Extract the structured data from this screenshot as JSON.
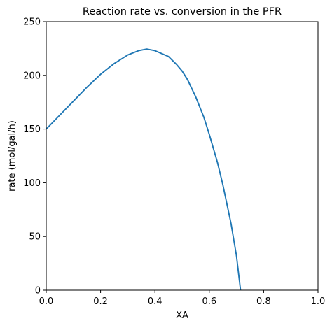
{
  "chart_data": {
    "type": "line",
    "title": "Reaction rate vs. conversion in the PFR",
    "xlabel": "XA",
    "ylabel": "rate (mol/gal/h)",
    "xlim": [
      0,
      1
    ],
    "ylim": [
      0,
      250
    ],
    "grid": false,
    "x_ticks": [
      0.0,
      0.2,
      0.4,
      0.6,
      0.8,
      1.0
    ],
    "x_tick_labels": [
      "0.0",
      "0.2",
      "0.4",
      "0.6",
      "0.8",
      "1.0"
    ],
    "y_ticks": [
      0,
      50,
      100,
      150,
      200,
      250
    ],
    "y_tick_labels": [
      "0",
      "50",
      "100",
      "150",
      "200",
      "250"
    ],
    "colors": {
      "series": "#1f77b4",
      "axes": "#000000"
    },
    "series": [
      {
        "x": [
          0.0,
          0.05,
          0.1,
          0.15,
          0.2,
          0.25,
          0.3,
          0.34,
          0.37,
          0.4,
          0.45,
          0.48,
          0.5,
          0.52,
          0.55,
          0.58,
          0.6,
          0.63,
          0.65,
          0.68,
          0.7,
          0.715
        ],
        "y": [
          150,
          163,
          176,
          189,
          201,
          211,
          219,
          223,
          224.5,
          223,
          217.5,
          210,
          204,
          196,
          180,
          161,
          145,
          119,
          98,
          62,
          32,
          0
        ]
      }
    ]
  }
}
